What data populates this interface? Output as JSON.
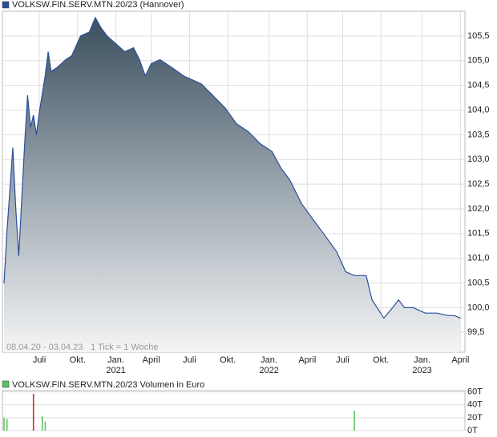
{
  "chart_data": [
    {
      "type": "area",
      "info": "08.04.20 - 03.04.23",
      "tick_note": "1 Tick = 1 Woche",
      "x": [
        0,
        1,
        3,
        4,
        5,
        7,
        8,
        9,
        10,
        11,
        12,
        14,
        15,
        16,
        18,
        21,
        23,
        26,
        29,
        31,
        33,
        35,
        38,
        41,
        44,
        46,
        48,
        50,
        53,
        57,
        61,
        67,
        71,
        75,
        79,
        83,
        87,
        91,
        94,
        97,
        101,
        105,
        109,
        113,
        116,
        119,
        123,
        125,
        129,
        132,
        134,
        136,
        139,
        143,
        147,
        151,
        153,
        155
      ],
      "series": [
        {
          "name": "VOLKSW.FIN.SERV.MTN.20/23 (Hannover)",
          "color": "#2a4f9a",
          "values": [
            100.49,
            101.54,
            103.24,
            102.0,
            101.05,
            103.3,
            104.3,
            103.65,
            103.9,
            103.5,
            103.96,
            104.7,
            105.18,
            104.78,
            104.86,
            105.02,
            105.1,
            105.5,
            105.58,
            105.87,
            105.66,
            105.5,
            105.34,
            105.18,
            105.26,
            105.02,
            104.69,
            104.94,
            105.02,
            104.86,
            104.69,
            104.53,
            104.29,
            104.05,
            103.72,
            103.56,
            103.32,
            103.16,
            102.83,
            102.59,
            102.11,
            101.78,
            101.46,
            101.13,
            100.73,
            100.65,
            100.65,
            100.16,
            99.79,
            100.0,
            100.16,
            100.0,
            100.0,
            99.89,
            99.89,
            99.84,
            99.84,
            99.79
          ]
        }
      ],
      "xlim": [
        0,
        156
      ],
      "xticks": [
        {
          "value": 12,
          "label": "Juli"
        },
        {
          "value": 25,
          "label": "Okt."
        },
        {
          "value": 38,
          "label": "Jan.",
          "year": "2021"
        },
        {
          "value": 50,
          "label": "April"
        },
        {
          "value": 63,
          "label": "Juli"
        },
        {
          "value": 76,
          "label": "Okt."
        },
        {
          "value": 90,
          "label": "Jan.",
          "year": "2022"
        },
        {
          "value": 103,
          "label": "April"
        },
        {
          "value": 115,
          "label": "Juli"
        },
        {
          "value": 128,
          "label": "Okt."
        },
        {
          "value": 142,
          "label": "Jan.",
          "year": "2023"
        },
        {
          "value": 155,
          "label": "April"
        }
      ],
      "ylim": [
        99.1,
        106.0
      ],
      "yticks": [
        {
          "value": 99.5,
          "label": "99,5"
        },
        {
          "value": 100,
          "label": "100,0"
        },
        {
          "value": 100.5,
          "label": "100,5"
        },
        {
          "value": 101,
          "label": "101,0"
        },
        {
          "value": 101.5,
          "label": "101,5"
        },
        {
          "value": 102,
          "label": "102,0"
        },
        {
          "value": 102.5,
          "label": "102,5"
        },
        {
          "value": 103,
          "label": "103,0"
        },
        {
          "value": 103.5,
          "label": "103,5"
        },
        {
          "value": 104,
          "label": "104,0"
        },
        {
          "value": 104.5,
          "label": "104,5"
        },
        {
          "value": 105,
          "label": "105,0"
        },
        {
          "value": 105.5,
          "label": "105,5"
        }
      ],
      "grid": true
    },
    {
      "type": "bar",
      "legend": "VOLKSW.FIN.SERV.MTN.20/23 Volumen in Euro",
      "legend_color": "#5cc45c",
      "x": [
        0,
        1,
        10,
        13,
        14,
        119
      ],
      "values": [
        20000,
        18000,
        57000,
        22000,
        14000,
        31000
      ],
      "colors": [
        "#5cc45c",
        "#5cc45c",
        "#d03030",
        "#5cc45c",
        "#5cc45c",
        "#5cc45c"
      ],
      "xlim": [
        0,
        156
      ],
      "ylim": [
        0,
        62000
      ],
      "yticks": [
        {
          "value": 0,
          "label": "0T"
        },
        {
          "value": 20000,
          "label": "20T"
        },
        {
          "value": 40000,
          "label": "40T"
        },
        {
          "value": 60000,
          "label": "60T"
        }
      ],
      "grid": true
    }
  ]
}
